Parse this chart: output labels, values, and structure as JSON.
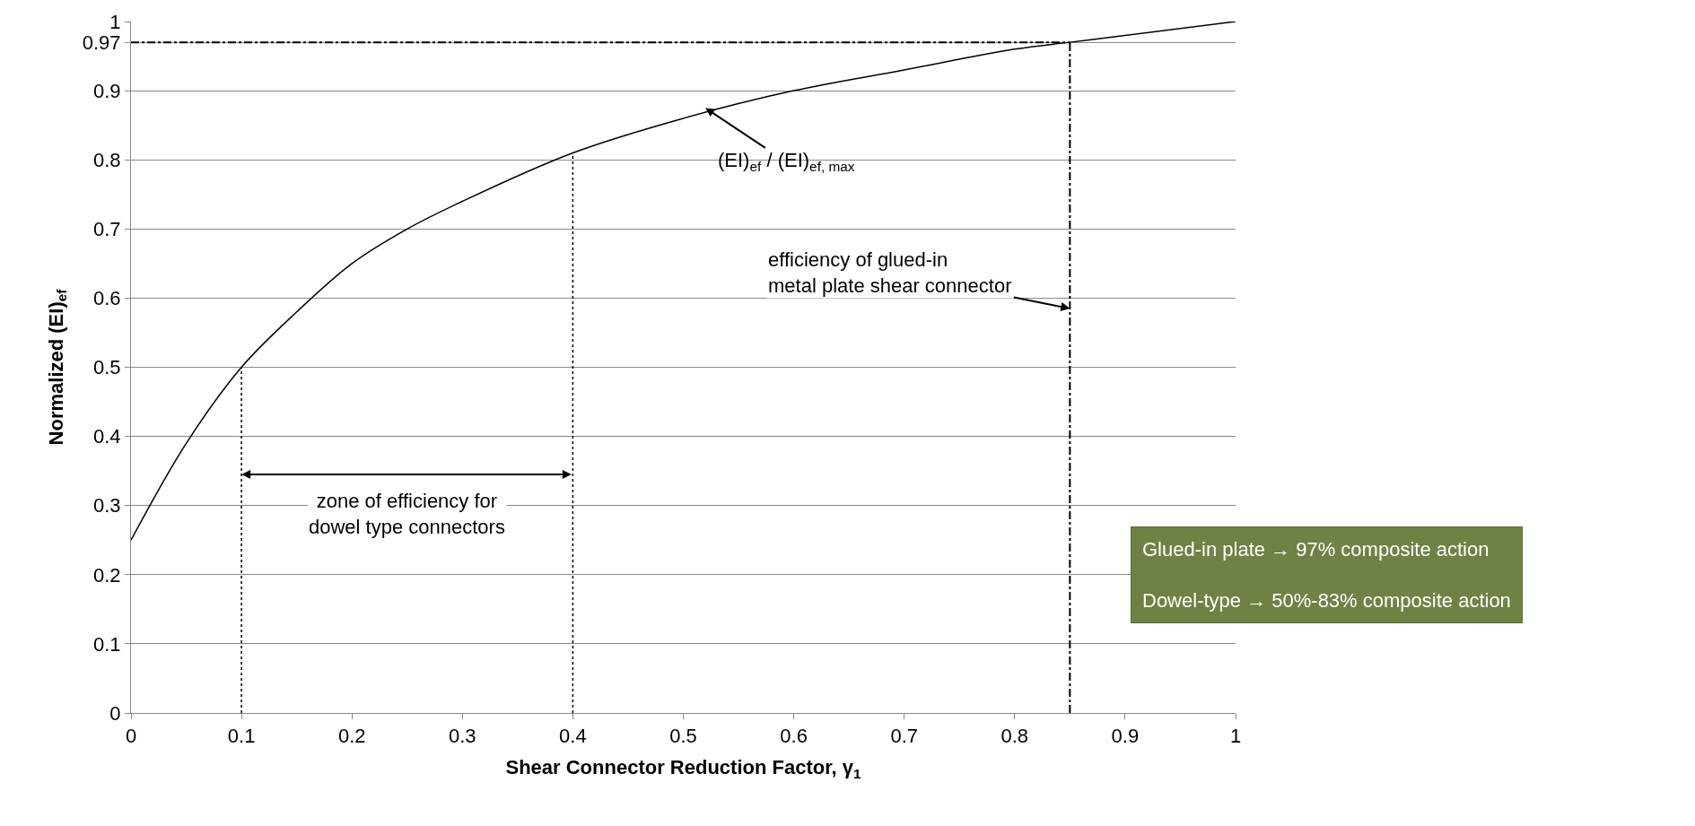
{
  "chart_data": {
    "type": "line",
    "xlabel": "Shear Connector Reduction Factor, γ$_{1}$",
    "ylabel": "Normalized (EI)$_{ef}$",
    "x": [
      0,
      0.05,
      0.1,
      0.15,
      0.2,
      0.25,
      0.3,
      0.4,
      0.5,
      0.6,
      0.7,
      0.8,
      0.85,
      0.9,
      1
    ],
    "series": [
      {
        "color": "#000000",
        "values": [
          0.25,
          0.39,
          0.5,
          0.58,
          0.65,
          0.7,
          0.74,
          0.81,
          0.86,
          0.9,
          0.93,
          0.96,
          0.97,
          0.98,
          1
        ]
      }
    ],
    "xlim": [
      0,
      1
    ],
    "xticks": [
      0,
      0.1,
      0.2,
      0.3,
      0.4,
      0.5,
      0.6,
      0.7,
      0.8,
      0.9,
      1
    ],
    "ylim": [
      0,
      1
    ],
    "yticks": [
      0,
      0.1,
      0.2,
      0.3,
      0.4,
      0.5,
      0.6,
      0.7,
      0.8,
      0.9,
      {
        "value": 0.97,
        "label": "0.97"
      },
      1
    ],
    "ref_lines": [
      {
        "axis": "x",
        "value": 0.1,
        "line_style": "dotted"
      },
      {
        "axis": "x",
        "value": 0.4,
        "line_style": "dotted"
      },
      {
        "axis": "x",
        "value": 0.85,
        "line_style": "dashdot"
      },
      {
        "axis": "y",
        "value": 0.97,
        "line_style": "dashdot"
      }
    ],
    "annotations": [
      {
        "text": "(EI)$_{ef}$ / (EI)$_{ef, max}$",
        "x": 0.52,
        "y": 0.875
      },
      {
        "text": "efficiency of glued-in metal plate shear connector",
        "x": 0.85,
        "y": 0.585
      },
      "zone of efficiency for dowel type connectors",
      "Glued-in plate → 97% composite action",
      "Dowel-type → 50%-83% composite action"
    ],
    "grid": "y",
    "marker": "none",
    "line_style": "solid"
  }
}
